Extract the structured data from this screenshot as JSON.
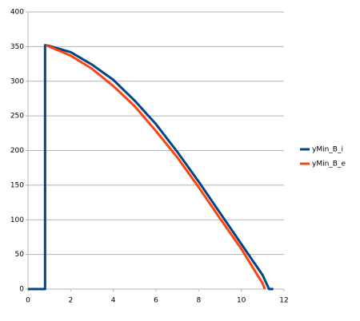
{
  "chart_data": {
    "type": "line",
    "xlim": [
      0,
      12
    ],
    "xticks": [
      0,
      2,
      4,
      6,
      8,
      10,
      12
    ],
    "ylim": [
      0,
      400
    ],
    "yticks": [
      0,
      50,
      100,
      150,
      200,
      250,
      300,
      350,
      400
    ],
    "grid": true,
    "legend": "right",
    "series": [
      {
        "name": "yMin_B_i",
        "color": "#004586",
        "x": [
          0,
          0.8,
          0.8,
          1,
          2,
          3,
          4,
          5,
          6,
          7,
          8,
          9,
          10,
          11,
          11.3,
          11.5
        ],
        "values": [
          0,
          0,
          352,
          351,
          342,
          324,
          302,
          272,
          238,
          198,
          155,
          110,
          65,
          20,
          0,
          0
        ]
      },
      {
        "name": "yMin_B_e",
        "color": "#ff420e",
        "x": [
          0.85,
          1,
          2,
          3,
          4,
          5,
          6,
          7,
          8,
          9,
          10,
          11,
          11.1
        ],
        "values": [
          352,
          350,
          337,
          318,
          293,
          264,
          228,
          190,
          147,
          102,
          58,
          8,
          0
        ]
      }
    ]
  }
}
